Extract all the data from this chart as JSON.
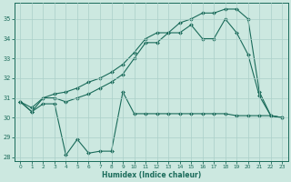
{
  "xlabel": "Humidex (Indice chaleur)",
  "xlim": [
    -0.5,
    23.5
  ],
  "ylim": [
    27.8,
    35.8
  ],
  "yticks": [
    28,
    29,
    30,
    31,
    32,
    33,
    34,
    35
  ],
  "xticks": [
    0,
    1,
    2,
    3,
    4,
    5,
    6,
    7,
    8,
    9,
    10,
    11,
    12,
    13,
    14,
    15,
    16,
    17,
    18,
    19,
    20,
    21,
    22,
    23
  ],
  "bg_color": "#cce8e0",
  "grid_color": "#aacfc8",
  "line_color": "#1a6b5a",
  "line1": [
    [
      0,
      30.8
    ],
    [
      1,
      30.3
    ],
    [
      2,
      30.7
    ],
    [
      3,
      30.7
    ],
    [
      4,
      28.1
    ],
    [
      5,
      28.9
    ],
    [
      6,
      28.2
    ],
    [
      7,
      28.3
    ],
    [
      8,
      28.3
    ],
    [
      9,
      31.3
    ],
    [
      10,
      30.2
    ],
    [
      11,
      30.2
    ],
    [
      12,
      30.2
    ],
    [
      13,
      30.2
    ],
    [
      14,
      30.2
    ],
    [
      15,
      30.2
    ],
    [
      16,
      30.2
    ],
    [
      17,
      30.2
    ],
    [
      18,
      30.2
    ],
    [
      19,
      30.1
    ],
    [
      20,
      30.1
    ],
    [
      21,
      30.1
    ],
    [
      22,
      30.1
    ],
    [
      23,
      30.0
    ]
  ],
  "line2": [
    [
      0,
      30.8
    ],
    [
      1,
      30.3
    ],
    [
      2,
      31.0
    ],
    [
      3,
      31.0
    ],
    [
      4,
      30.8
    ],
    [
      5,
      31.0
    ],
    [
      6,
      31.2
    ],
    [
      7,
      31.5
    ],
    [
      8,
      31.8
    ],
    [
      9,
      32.2
    ],
    [
      10,
      33.0
    ],
    [
      11,
      33.8
    ],
    [
      12,
      33.8
    ],
    [
      13,
      34.3
    ],
    [
      14,
      34.3
    ],
    [
      15,
      34.7
    ],
    [
      16,
      34.0
    ],
    [
      17,
      34.0
    ],
    [
      18,
      35.0
    ],
    [
      19,
      34.3
    ],
    [
      20,
      33.2
    ],
    [
      21,
      31.1
    ],
    [
      22,
      30.1
    ],
    [
      23,
      30.0
    ]
  ],
  "line3": [
    [
      0,
      30.8
    ],
    [
      1,
      30.5
    ],
    [
      2,
      31.0
    ],
    [
      3,
      31.2
    ],
    [
      4,
      31.3
    ],
    [
      5,
      31.5
    ],
    [
      6,
      31.8
    ],
    [
      7,
      32.0
    ],
    [
      8,
      32.3
    ],
    [
      9,
      32.7
    ],
    [
      10,
      33.3
    ],
    [
      11,
      34.0
    ],
    [
      12,
      34.3
    ],
    [
      13,
      34.3
    ],
    [
      14,
      34.8
    ],
    [
      15,
      35.0
    ],
    [
      16,
      35.3
    ],
    [
      17,
      35.3
    ],
    [
      18,
      35.5
    ],
    [
      19,
      35.5
    ],
    [
      20,
      35.0
    ],
    [
      21,
      31.3
    ],
    [
      22,
      30.1
    ],
    [
      23,
      30.0
    ]
  ]
}
